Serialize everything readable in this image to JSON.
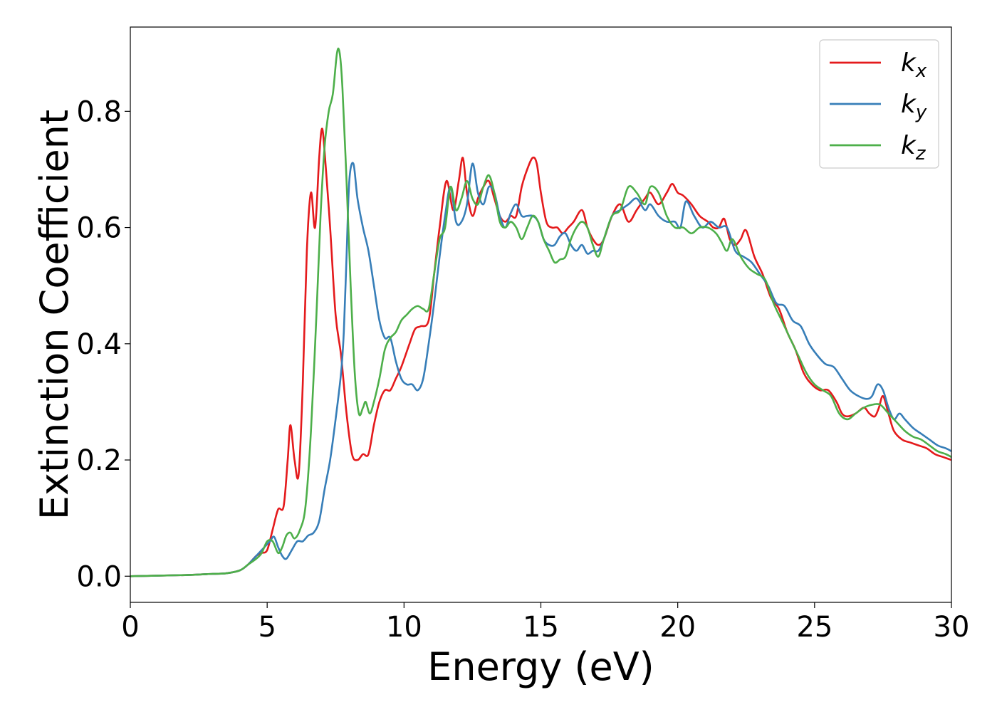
{
  "chart_data": {
    "type": "line",
    "xlabel": "Energy (eV)",
    "ylabel": "Extinction Coefficient",
    "xlim": [
      0,
      30
    ],
    "ylim": [
      -0.045,
      0.945
    ],
    "xticks": [
      0,
      5,
      10,
      15,
      20,
      25,
      30
    ],
    "xtick_labels": [
      "0",
      "5",
      "10",
      "15",
      "20",
      "25",
      "30"
    ],
    "yticks": [
      0.0,
      0.2,
      0.4,
      0.6,
      0.8
    ],
    "ytick_labels": [
      "0.0",
      "0.2",
      "0.4",
      "0.6",
      "0.8"
    ],
    "grid": false,
    "legend_position": "top-right",
    "series": [
      {
        "name": "k",
        "subscript": "x",
        "color": "#e41a1c",
        "x": [
          0,
          2,
          3,
          3.5,
          4,
          4.3,
          4.6,
          4.8,
          5.0,
          5.2,
          5.4,
          5.6,
          5.75,
          5.85,
          6.0,
          6.15,
          6.3,
          6.45,
          6.6,
          6.75,
          6.9,
          7.0,
          7.1,
          7.3,
          7.5,
          7.7,
          7.9,
          8.1,
          8.3,
          8.5,
          8.7,
          8.9,
          9.1,
          9.3,
          9.5,
          9.7,
          9.9,
          10.2,
          10.4,
          10.6,
          10.9,
          11.1,
          11.3,
          11.55,
          11.8,
          12.0,
          12.15,
          12.3,
          12.5,
          12.7,
          12.9,
          13.1,
          13.3,
          13.5,
          13.7,
          13.9,
          14.1,
          14.3,
          14.5,
          14.7,
          14.85,
          15.0,
          15.2,
          15.4,
          15.6,
          15.8,
          16.0,
          16.2,
          16.5,
          16.7,
          16.9,
          17.1,
          17.3,
          17.6,
          17.9,
          18.2,
          18.5,
          18.8,
          19.0,
          19.3,
          19.6,
          19.8,
          20.0,
          20.2,
          20.5,
          20.8,
          21.1,
          21.3,
          21.5,
          21.7,
          21.9,
          22.1,
          22.3,
          22.5,
          22.8,
          23.1,
          23.4,
          23.7,
          24.0,
          24.3,
          24.6,
          24.9,
          25.2,
          25.5,
          25.8,
          26.0,
          26.2,
          26.5,
          26.8,
          27.0,
          27.2,
          27.35,
          27.5,
          27.7,
          27.9,
          28.2,
          28.5,
          28.8,
          29.1,
          29.4,
          29.7,
          30
        ],
        "y": [
          0.0,
          0.002,
          0.004,
          0.005,
          0.01,
          0.02,
          0.035,
          0.04,
          0.045,
          0.08,
          0.115,
          0.12,
          0.2,
          0.26,
          0.2,
          0.175,
          0.33,
          0.56,
          0.66,
          0.6,
          0.72,
          0.77,
          0.73,
          0.6,
          0.45,
          0.38,
          0.28,
          0.21,
          0.2,
          0.21,
          0.21,
          0.26,
          0.3,
          0.32,
          0.32,
          0.34,
          0.36,
          0.4,
          0.425,
          0.43,
          0.44,
          0.52,
          0.6,
          0.68,
          0.63,
          0.68,
          0.72,
          0.66,
          0.62,
          0.65,
          0.67,
          0.68,
          0.65,
          0.62,
          0.61,
          0.62,
          0.62,
          0.67,
          0.7,
          0.72,
          0.71,
          0.66,
          0.61,
          0.6,
          0.6,
          0.59,
          0.6,
          0.61,
          0.63,
          0.6,
          0.58,
          0.57,
          0.58,
          0.62,
          0.64,
          0.61,
          0.63,
          0.65,
          0.66,
          0.64,
          0.66,
          0.675,
          0.66,
          0.655,
          0.64,
          0.62,
          0.61,
          0.6,
          0.6,
          0.615,
          0.58,
          0.57,
          0.58,
          0.595,
          0.55,
          0.52,
          0.48,
          0.46,
          0.42,
          0.39,
          0.35,
          0.33,
          0.32,
          0.32,
          0.3,
          0.28,
          0.275,
          0.28,
          0.29,
          0.28,
          0.275,
          0.29,
          0.31,
          0.28,
          0.25,
          0.235,
          0.23,
          0.225,
          0.22,
          0.21,
          0.205,
          0.2
        ]
      },
      {
        "name": "k",
        "subscript": "y",
        "color": "#377eb8",
        "x": [
          0,
          2,
          3,
          3.5,
          4,
          4.3,
          4.6,
          4.9,
          5.1,
          5.25,
          5.4,
          5.55,
          5.7,
          5.9,
          6.1,
          6.3,
          6.5,
          6.7,
          6.9,
          7.1,
          7.3,
          7.5,
          7.7,
          7.8,
          7.9,
          8.0,
          8.15,
          8.3,
          8.5,
          8.7,
          8.9,
          9.1,
          9.3,
          9.5,
          9.7,
          9.9,
          10.1,
          10.3,
          10.5,
          10.7,
          10.9,
          11.1,
          11.3,
          11.5,
          11.7,
          11.9,
          12.1,
          12.3,
          12.5,
          12.7,
          12.9,
          13.1,
          13.3,
          13.5,
          13.7,
          13.9,
          14.1,
          14.3,
          14.5,
          14.7,
          14.9,
          15.1,
          15.3,
          15.5,
          15.7,
          15.9,
          16.1,
          16.3,
          16.5,
          16.7,
          16.9,
          17.1,
          17.3,
          17.6,
          17.9,
          18.2,
          18.5,
          18.8,
          19.0,
          19.3,
          19.6,
          19.9,
          20.1,
          20.3,
          20.6,
          20.9,
          21.2,
          21.5,
          21.8,
          22.1,
          22.4,
          22.7,
          23.0,
          23.3,
          23.6,
          23.9,
          24.2,
          24.5,
          24.8,
          25.1,
          25.4,
          25.7,
          26.0,
          26.3,
          26.6,
          26.9,
          27.1,
          27.3,
          27.5,
          27.7,
          27.9,
          28.1,
          28.3,
          28.6,
          28.9,
          29.2,
          29.5,
          29.8,
          30
        ],
        "y": [
          0.0,
          0.002,
          0.004,
          0.005,
          0.01,
          0.02,
          0.035,
          0.05,
          0.06,
          0.068,
          0.05,
          0.035,
          0.03,
          0.045,
          0.06,
          0.06,
          0.07,
          0.075,
          0.095,
          0.15,
          0.2,
          0.27,
          0.35,
          0.42,
          0.55,
          0.68,
          0.71,
          0.65,
          0.6,
          0.56,
          0.5,
          0.44,
          0.41,
          0.41,
          0.37,
          0.34,
          0.33,
          0.33,
          0.32,
          0.34,
          0.4,
          0.47,
          0.55,
          0.62,
          0.67,
          0.61,
          0.61,
          0.64,
          0.71,
          0.66,
          0.64,
          0.67,
          0.66,
          0.62,
          0.6,
          0.625,
          0.64,
          0.62,
          0.62,
          0.62,
          0.61,
          0.58,
          0.57,
          0.57,
          0.585,
          0.59,
          0.57,
          0.56,
          0.57,
          0.555,
          0.56,
          0.56,
          0.58,
          0.62,
          0.63,
          0.64,
          0.65,
          0.63,
          0.64,
          0.62,
          0.61,
          0.61,
          0.6,
          0.645,
          0.62,
          0.6,
          0.61,
          0.6,
          0.6,
          0.56,
          0.55,
          0.54,
          0.52,
          0.5,
          0.47,
          0.465,
          0.44,
          0.43,
          0.4,
          0.38,
          0.365,
          0.36,
          0.34,
          0.32,
          0.31,
          0.305,
          0.31,
          0.33,
          0.32,
          0.29,
          0.27,
          0.28,
          0.27,
          0.255,
          0.245,
          0.235,
          0.225,
          0.22,
          0.215
        ]
      },
      {
        "name": "k",
        "subscript": "z",
        "color": "#4daf4a",
        "x": [
          0,
          2,
          3,
          3.5,
          4,
          4.3,
          4.6,
          4.8,
          5.0,
          5.2,
          5.4,
          5.55,
          5.7,
          5.85,
          6.0,
          6.2,
          6.4,
          6.6,
          6.8,
          6.95,
          7.1,
          7.25,
          7.4,
          7.55,
          7.65,
          7.75,
          7.9,
          8.05,
          8.2,
          8.35,
          8.5,
          8.6,
          8.75,
          8.9,
          9.1,
          9.3,
          9.5,
          9.7,
          9.9,
          10.1,
          10.3,
          10.5,
          10.7,
          10.9,
          11.1,
          11.3,
          11.5,
          11.7,
          11.9,
          12.1,
          12.3,
          12.5,
          12.7,
          12.9,
          13.1,
          13.3,
          13.5,
          13.7,
          13.9,
          14.1,
          14.3,
          14.5,
          14.7,
          14.9,
          15.1,
          15.3,
          15.5,
          15.7,
          15.9,
          16.1,
          16.3,
          16.5,
          16.7,
          16.9,
          17.1,
          17.3,
          17.6,
          17.9,
          18.2,
          18.5,
          18.8,
          19.0,
          19.3,
          19.6,
          19.9,
          20.2,
          20.5,
          20.8,
          21.1,
          21.4,
          21.6,
          21.8,
          22.0,
          22.3,
          22.6,
          22.9,
          23.2,
          23.5,
          23.8,
          24.1,
          24.4,
          24.7,
          25.0,
          25.3,
          25.6,
          25.9,
          26.2,
          26.5,
          26.8,
          27.1,
          27.4,
          27.7,
          28.0,
          28.3,
          28.6,
          28.9,
          29.2,
          29.5,
          29.8,
          30
        ],
        "y": [
          0.0,
          0.002,
          0.004,
          0.005,
          0.01,
          0.02,
          0.03,
          0.04,
          0.06,
          0.06,
          0.04,
          0.05,
          0.07,
          0.075,
          0.065,
          0.08,
          0.12,
          0.25,
          0.45,
          0.62,
          0.74,
          0.8,
          0.83,
          0.9,
          0.9,
          0.84,
          0.68,
          0.5,
          0.35,
          0.28,
          0.29,
          0.3,
          0.28,
          0.3,
          0.34,
          0.39,
          0.41,
          0.42,
          0.44,
          0.45,
          0.46,
          0.465,
          0.46,
          0.46,
          0.52,
          0.58,
          0.6,
          0.67,
          0.63,
          0.65,
          0.68,
          0.65,
          0.64,
          0.67,
          0.69,
          0.66,
          0.61,
          0.6,
          0.61,
          0.6,
          0.58,
          0.6,
          0.62,
          0.61,
          0.58,
          0.56,
          0.54,
          0.545,
          0.55,
          0.58,
          0.6,
          0.61,
          0.6,
          0.57,
          0.55,
          0.58,
          0.62,
          0.63,
          0.67,
          0.66,
          0.64,
          0.67,
          0.66,
          0.62,
          0.6,
          0.6,
          0.59,
          0.6,
          0.6,
          0.59,
          0.575,
          0.56,
          0.58,
          0.55,
          0.53,
          0.52,
          0.51,
          0.47,
          0.44,
          0.41,
          0.38,
          0.35,
          0.33,
          0.32,
          0.31,
          0.28,
          0.27,
          0.28,
          0.29,
          0.295,
          0.295,
          0.28,
          0.265,
          0.25,
          0.24,
          0.235,
          0.225,
          0.215,
          0.21,
          0.205
        ]
      }
    ]
  }
}
